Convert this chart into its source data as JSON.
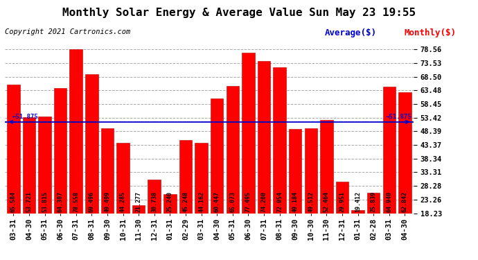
{
  "title": "Monthly Solar Energy & Average Value Sun May 23 19:55",
  "copyright": "Copyright 2021 Cartronics.com",
  "categories": [
    "03-31",
    "04-30",
    "05-31",
    "06-30",
    "07-31",
    "08-31",
    "09-30",
    "10-31",
    "11-30",
    "12-31",
    "01-31",
    "02-29",
    "03-31",
    "04-30",
    "05-31",
    "06-30",
    "07-31",
    "08-31",
    "09-30",
    "10-30",
    "11-30",
    "12-31",
    "01-31",
    "02-28",
    "03-31",
    "04-30"
  ],
  "values": [
    65.584,
    53.721,
    53.815,
    64.307,
    78.558,
    69.496,
    49.499,
    44.285,
    21.277,
    30.738,
    25.24,
    45.248,
    44.162,
    60.447,
    65.073,
    77.495,
    74.2,
    72.054,
    49.184,
    49.512,
    52.464,
    29.951,
    19.412,
    25.839,
    64.94,
    62.842
  ],
  "average_value": 51.875,
  "bar_color": "#ff0000",
  "bar_edge_color": "#bb0000",
  "average_line_color": "#0000cc",
  "average_label": "Average($)",
  "monthly_label": "Monthly($)",
  "monthly_label_color": "#ff0000",
  "average_label_color": "#0000cc",
  "y_ticks": [
    18.23,
    23.26,
    28.28,
    33.31,
    38.34,
    43.37,
    48.39,
    53.42,
    58.45,
    63.48,
    68.5,
    73.53,
    78.56
  ],
  "ylim_min": 18.23,
  "ylim_max": 80.5,
  "background_color": "#ffffff",
  "grid_color": "#aaaaaa",
  "title_fontsize": 11.5,
  "copyright_fontsize": 7.5,
  "bar_label_fontsize": 6.0,
  "tick_fontsize": 7.5,
  "legend_fontsize": 9
}
